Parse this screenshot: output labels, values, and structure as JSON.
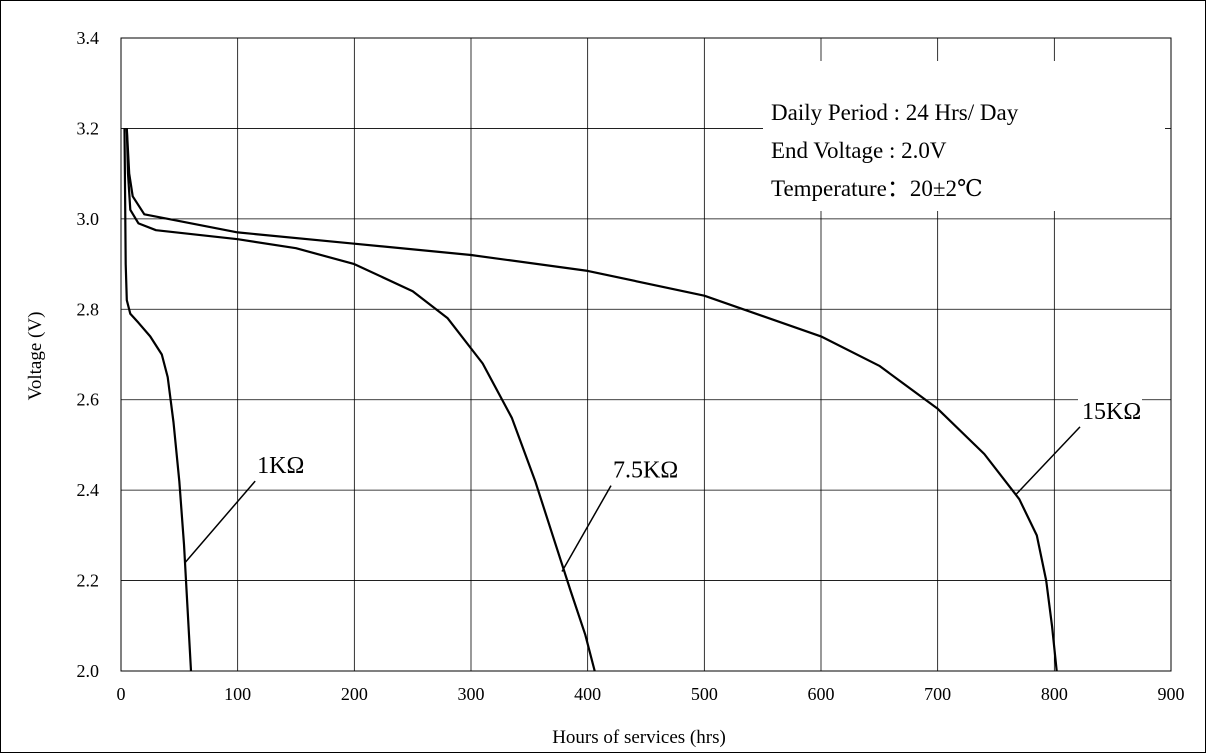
{
  "chart_data": {
    "type": "line",
    "xlabel": "Hours of services (hrs)",
    "ylabel": "Voltage (V)",
    "xlim": [
      0,
      900
    ],
    "ylim": [
      2.0,
      3.4
    ],
    "x_ticks": [
      0,
      100,
      200,
      300,
      400,
      500,
      600,
      700,
      800,
      900
    ],
    "x_tick_labels": [
      "0",
      "100",
      "200",
      "300",
      "400",
      "500",
      "600",
      "700",
      "800",
      "900"
    ],
    "y_ticks": [
      2.0,
      2.2,
      2.4,
      2.6,
      2.8,
      3.0,
      3.2,
      3.4
    ],
    "y_tick_labels": [
      "2.0",
      "2.2",
      "2.4",
      "2.6",
      "2.8",
      "3.0",
      "3.2",
      "3.4"
    ],
    "grid": true,
    "annotations": [
      "Daily Period  : 24 Hrs/ Day",
      "End Voltage : 2.0V",
      "Temperature：20±2℃"
    ],
    "series": [
      {
        "name": "1KΩ",
        "label_anchor": [
          55,
          2.24
        ],
        "label_at": [
          115,
          2.42
        ],
        "points": [
          [
            3,
            3.2
          ],
          [
            3.5,
            3.05
          ],
          [
            4,
            2.9
          ],
          [
            5,
            2.82
          ],
          [
            8,
            2.79
          ],
          [
            15,
            2.77
          ],
          [
            25,
            2.74
          ],
          [
            35,
            2.7
          ],
          [
            40,
            2.65
          ],
          [
            45,
            2.55
          ],
          [
            50,
            2.42
          ],
          [
            54,
            2.28
          ],
          [
            57,
            2.14
          ],
          [
            60,
            2.0
          ]
        ]
      },
      {
        "name": "7.5KΩ",
        "label_anchor": [
          378,
          2.22
        ],
        "label_at": [
          420,
          2.41
        ],
        "points": [
          [
            5,
            3.2
          ],
          [
            6,
            3.1
          ],
          [
            8,
            3.02
          ],
          [
            15,
            2.99
          ],
          [
            30,
            2.975
          ],
          [
            100,
            2.955
          ],
          [
            150,
            2.935
          ],
          [
            200,
            2.9
          ],
          [
            250,
            2.84
          ],
          [
            280,
            2.78
          ],
          [
            310,
            2.68
          ],
          [
            335,
            2.56
          ],
          [
            355,
            2.42
          ],
          [
            370,
            2.3
          ],
          [
            385,
            2.18
          ],
          [
            398,
            2.08
          ],
          [
            406,
            2.0
          ]
        ]
      },
      {
        "name": "15KΩ",
        "label_anchor": [
          767,
          2.39
        ],
        "label_at": [
          822,
          2.54
        ],
        "points": [
          [
            5,
            3.2
          ],
          [
            7,
            3.1
          ],
          [
            10,
            3.05
          ],
          [
            20,
            3.01
          ],
          [
            50,
            2.995
          ],
          [
            100,
            2.97
          ],
          [
            200,
            2.945
          ],
          [
            300,
            2.92
          ],
          [
            400,
            2.885
          ],
          [
            500,
            2.83
          ],
          [
            600,
            2.74
          ],
          [
            650,
            2.675
          ],
          [
            700,
            2.58
          ],
          [
            740,
            2.48
          ],
          [
            770,
            2.38
          ],
          [
            785,
            2.3
          ],
          [
            793,
            2.2
          ],
          [
            798,
            2.1
          ],
          [
            802,
            2.0
          ]
        ]
      }
    ]
  }
}
